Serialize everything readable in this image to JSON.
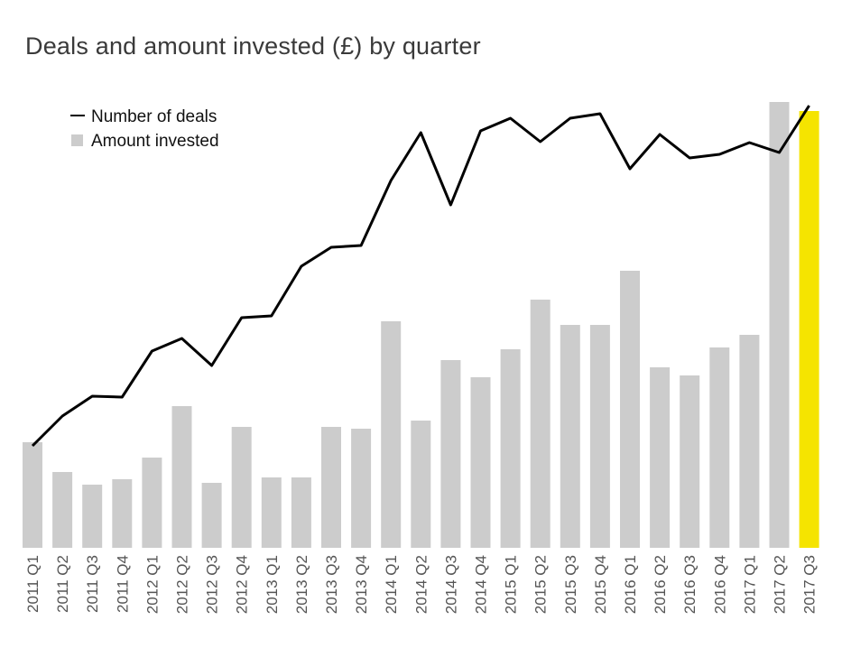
{
  "chart_data": {
    "type": "bar",
    "title": "Deals and amount invested (£) by quarter",
    "xlabel": "",
    "ylabel": "",
    "categories": [
      "2011 Q1",
      "2011 Q2",
      "2011 Q3",
      "2011 Q4",
      "2012 Q1",
      "2012 Q2",
      "2012 Q3",
      "2012 Q4",
      "2013 Q1",
      "2013 Q2",
      "2013 Q3",
      "2013 Q4",
      "2014 Q1",
      "2014 Q2",
      "2014 Q3",
      "2014 Q4",
      "2015 Q1",
      "2015 Q2",
      "2015 Q3",
      "2015 Q4",
      "2016 Q1",
      "2016 Q2",
      "2016 Q3",
      "2016 Q4",
      "2017 Q1",
      "2017 Q2",
      "2017 Q3"
    ],
    "series": [
      {
        "name": "Amount invested",
        "kind": "bar",
        "color": "#cccccc",
        "highlight_color": "#f5e400",
        "highlight_index": 26,
        "values": [
          117,
          84,
          70,
          76,
          100,
          157,
          72,
          134,
          78,
          78,
          134,
          132,
          251,
          141,
          208,
          189,
          220,
          275,
          247,
          247,
          307,
          200,
          191,
          222,
          236,
          494,
          484
        ]
      },
      {
        "name": "Number of deals",
        "kind": "line",
        "color": "#000000",
        "values": [
          113,
          146,
          168,
          167,
          218,
          232,
          202,
          255,
          257,
          312,
          333,
          335,
          407,
          460,
          380,
          462,
          476,
          450,
          476,
          481,
          420,
          458,
          432,
          436,
          449,
          438,
          490
        ]
      }
    ],
    "ylim_bars": [
      0,
      500
    ],
    "ylim_line": [
      0,
      500
    ],
    "grid": false,
    "legend_position": "top-left",
    "legend": [
      {
        "label": "Number of deals",
        "symbol": "line"
      },
      {
        "label": "Amount invested",
        "symbol": "square"
      }
    ]
  }
}
